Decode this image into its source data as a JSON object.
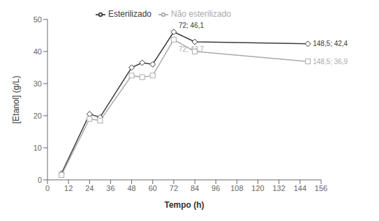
{
  "chart_data": {
    "type": "line",
    "x": [
      8,
      24,
      30,
      48,
      54,
      60,
      72,
      84,
      148.5
    ],
    "series": [
      {
        "name": "Esterilizado",
        "color": "#3a3a3a",
        "marker": "diamond",
        "values": [
          2.0,
          20.5,
          19.5,
          35.0,
          36.5,
          36.0,
          46.1,
          43.0,
          42.4
        ]
      },
      {
        "name": "Não esterilizado",
        "color": "#aaaaaa",
        "marker": "square",
        "values": [
          1.5,
          19.0,
          18.5,
          32.5,
          32.0,
          32.5,
          43.7,
          40.0,
          36.9
        ]
      }
    ],
    "xlabel": "Tempo (h)",
    "ylabel": "[Etanol] (g/L)",
    "xlim": [
      0,
      156
    ],
    "ylim": [
      0,
      50
    ],
    "xticks": [
      0,
      12,
      24,
      36,
      48,
      60,
      72,
      84,
      96,
      108,
      120,
      132,
      144,
      156
    ],
    "yticks": [
      0,
      10,
      20,
      30,
      40,
      50
    ],
    "grid": false,
    "legend": "top",
    "annotations": [
      {
        "text": "72; 46,1",
        "x": 72,
        "y": 46.1,
        "color": "#3a3a3a"
      },
      {
        "text": "72; 43,7",
        "x": 72,
        "y": 43.7,
        "color": "#aaaaaa"
      },
      {
        "text": "148,5; 42,4",
        "x": 148.5,
        "y": 42.4,
        "color": "#3a3a3a"
      },
      {
        "text": "148,5; 36,9",
        "x": 148.5,
        "y": 36.9,
        "color": "#aaaaaa"
      }
    ]
  }
}
